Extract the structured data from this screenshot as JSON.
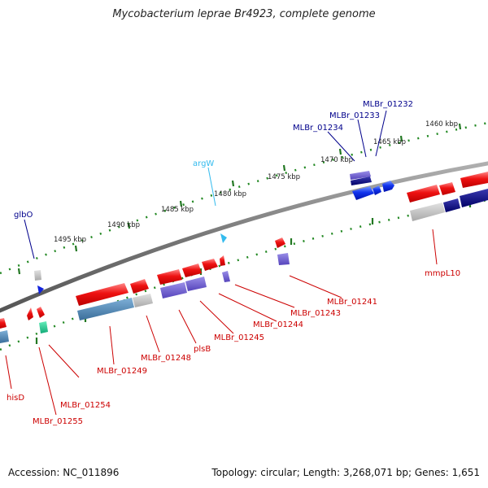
{
  "title": "Mycobacterium leprae Br4923, complete genome",
  "footer": {
    "accession_label": "Accession:",
    "accession": "NC_011896",
    "topology_label": "Topology:",
    "topology": "circular",
    "length_label": "Length:",
    "length": "3,268,071 bp",
    "genes_label": "Genes:",
    "genes": "1,651"
  },
  "scale": {
    "unit": "kbp",
    "ticks": [
      "1460 kbp",
      "1465 kbp",
      "1470 kbp",
      "1475 kbp",
      "1480 kbp",
      "1485 kbp",
      "1490 kbp",
      "1495 kbp"
    ]
  },
  "colors": {
    "backbone": "#7a7a7a",
    "forward_gene": "#ee1111",
    "reverse_gene": "#1133ee",
    "gene_label_blue": "#00008b",
    "gene_label_red": "#cc0000",
    "trna_label": "#33bbee",
    "tick_mark": "#228822",
    "cog_blue": "#4477aa",
    "cog_purple": "#7766cc",
    "cog_grey": "#bbbbbb",
    "cog_navy": "#000080",
    "cog_green": "#11cc88"
  },
  "gene_labels_top": [
    "MLBr_01232",
    "MLBr_01233",
    "MLBr_01234",
    "argW",
    "glbO"
  ],
  "gene_labels_bottom": [
    "mmpL10",
    "MLBr_01241",
    "MLBr_01243",
    "MLBr_01244",
    "MLBr_01245",
    "plsB",
    "MLBr_01248",
    "MLBr_01249",
    "MLBr_01254",
    "MLBr_01255",
    "hisD"
  ]
}
